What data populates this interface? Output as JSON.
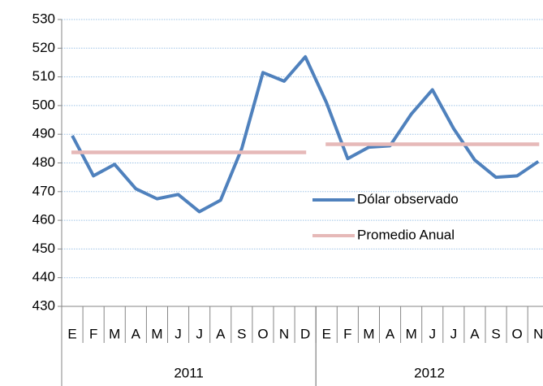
{
  "chart_data": {
    "type": "line",
    "categories": [
      "E",
      "F",
      "M",
      "A",
      "M",
      "J",
      "J",
      "A",
      "S",
      "O",
      "N",
      "D",
      "E",
      "F",
      "M",
      "A",
      "M",
      "J",
      "J",
      "A",
      "S",
      "O",
      "N"
    ],
    "x_groups": [
      {
        "label": "2011",
        "count": 12
      },
      {
        "label": "2012",
        "count": 11
      }
    ],
    "series": [
      {
        "name": "Dólar observado",
        "color": "#4f81bd",
        "values": [
          489.5,
          475.5,
          479.5,
          471,
          467.5,
          469,
          463,
          467,
          485,
          511.5,
          508.5,
          517,
          501,
          481.5,
          485.5,
          486,
          497,
          505.5,
          492,
          481,
          475,
          475.5,
          480.5
        ]
      },
      {
        "name": "Promedio Anual",
        "color": "#e6b9b8",
        "values": [
          483.7,
          483.7,
          483.7,
          483.7,
          483.7,
          483.7,
          483.7,
          483.7,
          483.7,
          483.7,
          483.7,
          483.7,
          486.5,
          486.5,
          486.5,
          486.5,
          486.5,
          486.5,
          486.5,
          486.5,
          486.5,
          486.5,
          486.5
        ]
      }
    ],
    "ylim": [
      430,
      530
    ],
    "yticks": [
      430,
      440,
      450,
      460,
      470,
      480,
      490,
      500,
      510,
      520,
      530
    ],
    "grid": true,
    "legend": "inside"
  }
}
